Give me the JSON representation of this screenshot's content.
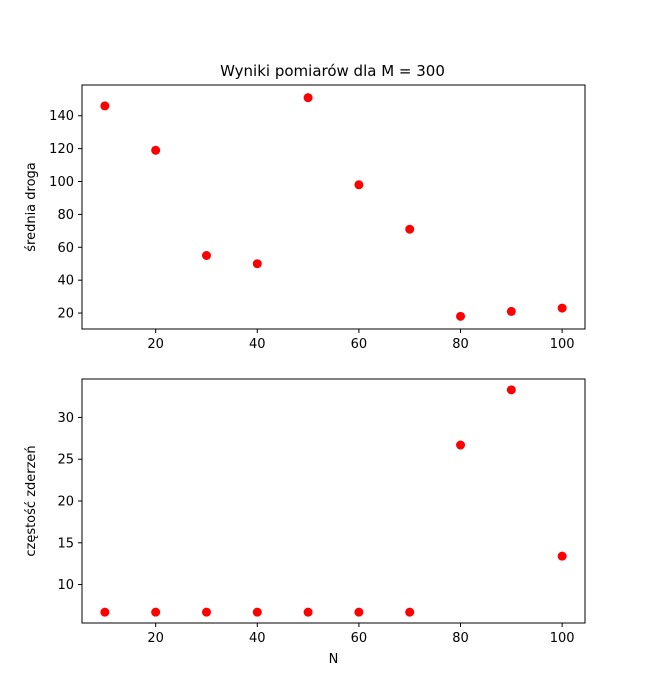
{
  "figure": {
    "title": "Wyniki pomiarów dla M = 300"
  },
  "colors": {
    "marker": "#ff0000",
    "axes": "#000000",
    "background": "#ffffff"
  },
  "chart_data": [
    {
      "type": "scatter",
      "title": "Wyniki pomiarów dla M = 300",
      "xlabel": "",
      "ylabel": "średnia droga",
      "x": [
        10,
        20,
        30,
        40,
        50,
        60,
        70,
        80,
        90,
        100
      ],
      "y": [
        146,
        119,
        55,
        50,
        151,
        98,
        71,
        18,
        21,
        23
      ],
      "xlim": [
        5.5,
        104.5
      ],
      "ylim": [
        10.3,
        158.7
      ],
      "xticks": [
        20,
        40,
        60,
        80,
        100
      ],
      "yticks": [
        20,
        40,
        60,
        80,
        100,
        120,
        140
      ],
      "grid": false,
      "legend": false
    },
    {
      "type": "scatter",
      "title": "",
      "xlabel": "N",
      "ylabel": "częstość zderzeń",
      "x": [
        10,
        20,
        30,
        40,
        50,
        60,
        70,
        80,
        90,
        100
      ],
      "y": [
        6.7,
        6.7,
        6.7,
        6.7,
        6.7,
        6.7,
        6.7,
        26.7,
        33.3,
        13.4
      ],
      "xlim": [
        5.5,
        104.5
      ],
      "ylim": [
        5.4,
        34.6
      ],
      "xticks": [
        20,
        40,
        60,
        80,
        100
      ],
      "yticks": [
        10,
        15,
        20,
        25,
        30
      ],
      "grid": false,
      "legend": false
    }
  ]
}
